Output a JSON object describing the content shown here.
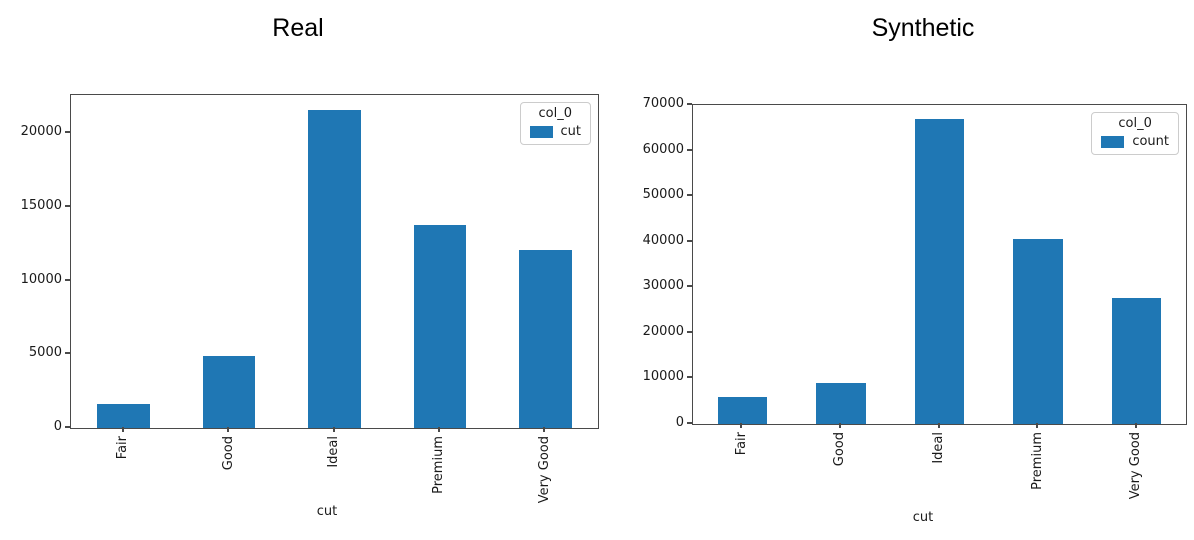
{
  "page": {
    "background": "#ffffff"
  },
  "chart_data": [
    {
      "id": "real",
      "type": "bar",
      "title": "Real",
      "categories": [
        "Fair",
        "Good",
        "Ideal",
        "Premium",
        "Very Good"
      ],
      "values": [
        1600,
        4900,
        21600,
        13800,
        12100
      ],
      "xlabel": "cut",
      "ylabel": "",
      "ylim": [
        0,
        22600
      ],
      "yticks": [
        0,
        5000,
        10000,
        15000,
        20000
      ],
      "grid": false,
      "bar_color": "#1f77b4",
      "legend": {
        "title": "col_0",
        "position": "upper right",
        "entries": [
          {
            "label": "cut",
            "color": "#1f77b4"
          }
        ]
      }
    },
    {
      "id": "synthetic",
      "type": "bar",
      "title": "Synthetic",
      "categories": [
        "Fair",
        "Good",
        "Ideal",
        "Premium",
        "Very Good"
      ],
      "values": [
        6000,
        9000,
        67000,
        40500,
        27700
      ],
      "xlabel": "cut",
      "ylabel": "",
      "ylim": [
        0,
        70000
      ],
      "yticks": [
        0,
        10000,
        20000,
        30000,
        40000,
        50000,
        60000,
        70000
      ],
      "grid": false,
      "bar_color": "#1f77b4",
      "legend": {
        "title": "col_0",
        "position": "upper right",
        "entries": [
          {
            "label": "count",
            "color": "#1f77b4"
          }
        ]
      }
    }
  ]
}
